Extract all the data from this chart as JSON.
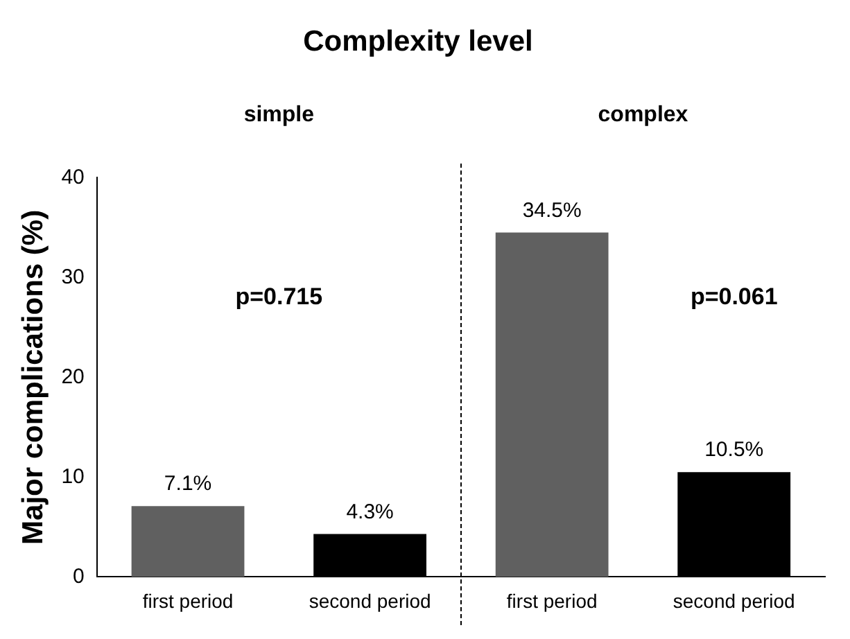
{
  "chart_data": {
    "type": "bar",
    "title": "Complexity level",
    "ylabel": "Major complications (%)",
    "categories": [
      "first period",
      "second period",
      "first period",
      "second period"
    ],
    "values": [
      7.1,
      4.3,
      34.5,
      10.5
    ],
    "colors": [
      "#606060",
      "#000000",
      "#606060",
      "#000000"
    ],
    "value_labels": [
      "7.1%",
      "4.3%",
      "34.5%",
      "10.5%"
    ],
    "annotations": [
      "simple",
      "complex",
      "p=0.715",
      "p=0.061"
    ],
    "ylim": [
      0,
      40
    ],
    "yticks": [
      0,
      10,
      20,
      30,
      40
    ],
    "grid": false,
    "legend": false
  }
}
